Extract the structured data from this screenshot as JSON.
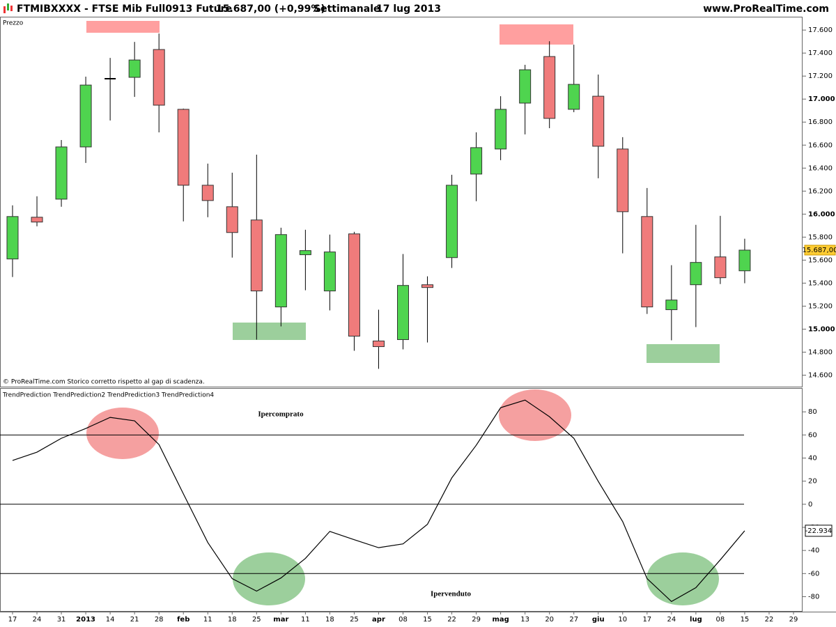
{
  "header": {
    "title": "FTMIBXXXX - FTSE Mib Full0913 Future",
    "quote": "15.687,00 (+0,99%)",
    "period": "Settimanale",
    "date": "17 lug 2013",
    "site": "www.ProRealTime.com"
  },
  "chart_data": [
    {
      "type": "candlestick",
      "title": "Prezzo",
      "note": "© ProRealTime.com  Storico corretto rispetto al gap di scadenza.",
      "categories": [
        "17",
        "24",
        "31",
        "2013",
        "14",
        "21",
        "28",
        "feb",
        "11",
        "18",
        "25",
        "mar",
        "11",
        "18",
        "25",
        "apr",
        "08",
        "15",
        "22",
        "29",
        "mag",
        "13",
        "20",
        "27",
        "giu",
        "10",
        "17",
        "24",
        "lug",
        "08",
        "15",
        "22",
        "29"
      ],
      "open": [
        15610,
        15973,
        16130,
        16584,
        17177,
        17189,
        17431,
        16911,
        16251,
        16064,
        15949,
        15193,
        15647,
        15332,
        15828,
        14897,
        14909,
        15386,
        15622,
        16348,
        16566,
        16965,
        17370,
        16911,
        17025,
        16566,
        15979,
        15169,
        15386,
        15628,
        15507,
        null,
        null
      ],
      "high": [
        16076,
        16155,
        16644,
        17195,
        17358,
        17497,
        17570,
        16917,
        16439,
        16360,
        16517,
        15882,
        15864,
        15822,
        15846,
        15169,
        15653,
        15459,
        16342,
        16711,
        17025,
        17298,
        17503,
        17473,
        17213,
        16669,
        16227,
        15556,
        15907,
        15985,
        15786,
        null,
        null
      ],
      "low": [
        15453,
        15894,
        16064,
        16445,
        16814,
        17019,
        16711,
        15937,
        15973,
        15622,
        14909,
        15024,
        15338,
        15163,
        14812,
        14655,
        14824,
        14884,
        15532,
        16112,
        16469,
        16693,
        16747,
        16886,
        16312,
        15659,
        15132,
        14903,
        15018,
        15392,
        15399,
        null,
        null
      ],
      "close": [
        15979,
        15931,
        16584,
        17122,
        17177,
        17340,
        16947,
        16251,
        16118,
        15840,
        15332,
        15822,
        15683,
        15671,
        14939,
        14848,
        15380,
        15362,
        16251,
        16578,
        16911,
        17255,
        16832,
        17128,
        16590,
        16021,
        15193,
        15253,
        15580,
        15447,
        15687,
        null,
        null
      ],
      "last_label": "15.687,00",
      "up_color": "#4fd44f",
      "down_color": "#f07b7b",
      "doji_color": "#000000",
      "ylim": [
        14500,
        17710
      ],
      "yticks": [
        {
          "value": 14600,
          "label": "14.600"
        },
        {
          "value": 14800,
          "label": "14.800"
        },
        {
          "value": 15000,
          "label": "15.000"
        },
        {
          "value": 15200,
          "label": "15.200"
        },
        {
          "value": 15400,
          "label": "15.400"
        },
        {
          "value": 15600,
          "label": "15.600"
        },
        {
          "value": 15800,
          "label": "15.800"
        },
        {
          "value": 16000,
          "label": "16.000"
        },
        {
          "value": 16200,
          "label": "16.200"
        },
        {
          "value": 16400,
          "label": "16.400"
        },
        {
          "value": 16600,
          "label": "16.600"
        },
        {
          "value": 16800,
          "label": "16.800"
        },
        {
          "value": 17000,
          "label": "17.000"
        },
        {
          "value": 17200,
          "label": "17.200"
        },
        {
          "value": 17400,
          "label": "17.400"
        },
        {
          "value": 17600,
          "label": "17.600"
        }
      ]
    },
    {
      "type": "line",
      "title": "TrendPrediction TrendPrediction2 TrendPrediction3 TrendPrediction4",
      "values": [
        37.9,
        45.1,
        57.1,
        65.6,
        75.2,
        72.2,
        51.7,
        9.0,
        -33.1,
        -64.4,
        -75.2,
        -63.8,
        -46.9,
        -23.5,
        -30.7,
        -37.6,
        -34.3,
        -17.4,
        22.9,
        51.1,
        83.6,
        90.2,
        75.8,
        57.1,
        19.8,
        -15.0,
        -64.4,
        -84.2,
        -72.2,
        -48.1,
        -22.934,
        null,
        null
      ],
      "color": "#000000",
      "levels": [
        60,
        0,
        -60
      ],
      "annotations": [
        {
          "text": "Ipercomprato",
          "color": "#e8141e"
        },
        {
          "text": "Ipervenduto",
          "color": "#1e8c1e"
        }
      ],
      "ylim": [
        -93,
        100
      ],
      "yticks": [
        -80,
        -60,
        -40,
        -20,
        0,
        20,
        40,
        60,
        80
      ]
    }
  ]
}
